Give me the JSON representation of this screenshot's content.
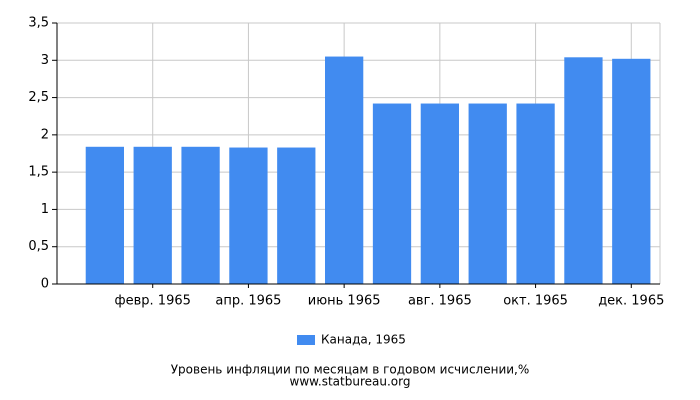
{
  "chart_data": {
    "type": "bar",
    "categories": [
      null,
      "февр. 1965",
      null,
      "апр. 1965",
      null,
      "июнь 1965",
      null,
      "авг. 1965",
      null,
      "окт. 1965",
      null,
      "дек. 1965"
    ],
    "series": [
      {
        "name": "Канада, 1965",
        "color": "#418bf0",
        "values": [
          1.84,
          1.84,
          1.84,
          1.83,
          1.83,
          3.05,
          2.42,
          2.42,
          2.42,
          2.42,
          3.04,
          3.02
        ]
      }
    ],
    "ylim": [
      0,
      3.5
    ],
    "yticks": [
      0,
      {
        "value": 0.5,
        "label": "0,5"
      },
      1,
      {
        "value": 1.5,
        "label": "1,5"
      },
      2,
      {
        "value": 2.5,
        "label": "2,5"
      },
      3,
      {
        "value": 3.5,
        "label": "3,5"
      }
    ],
    "grid": true,
    "xlabel": "Уровень инфляции по месяцам в годовом исчислении,%",
    "source": "www.statbureau.org"
  }
}
